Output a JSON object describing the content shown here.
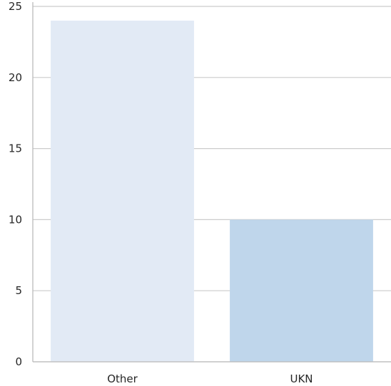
{
  "chart_data": {
    "type": "bar",
    "title": "",
    "xlabel": "",
    "ylabel": "",
    "categories": [
      "Other",
      "UKN"
    ],
    "values": [
      24,
      10
    ],
    "ylim": [
      0,
      25
    ],
    "yticks": [
      0,
      5,
      10,
      15,
      20,
      25
    ],
    "grid": true,
    "colors": {
      "bars": [
        "#e2eaf5",
        "#bfd6eb"
      ],
      "grid": "#cccccc",
      "axis": "#bbbbbb",
      "text": "#262626",
      "background": "#ffffff"
    }
  }
}
